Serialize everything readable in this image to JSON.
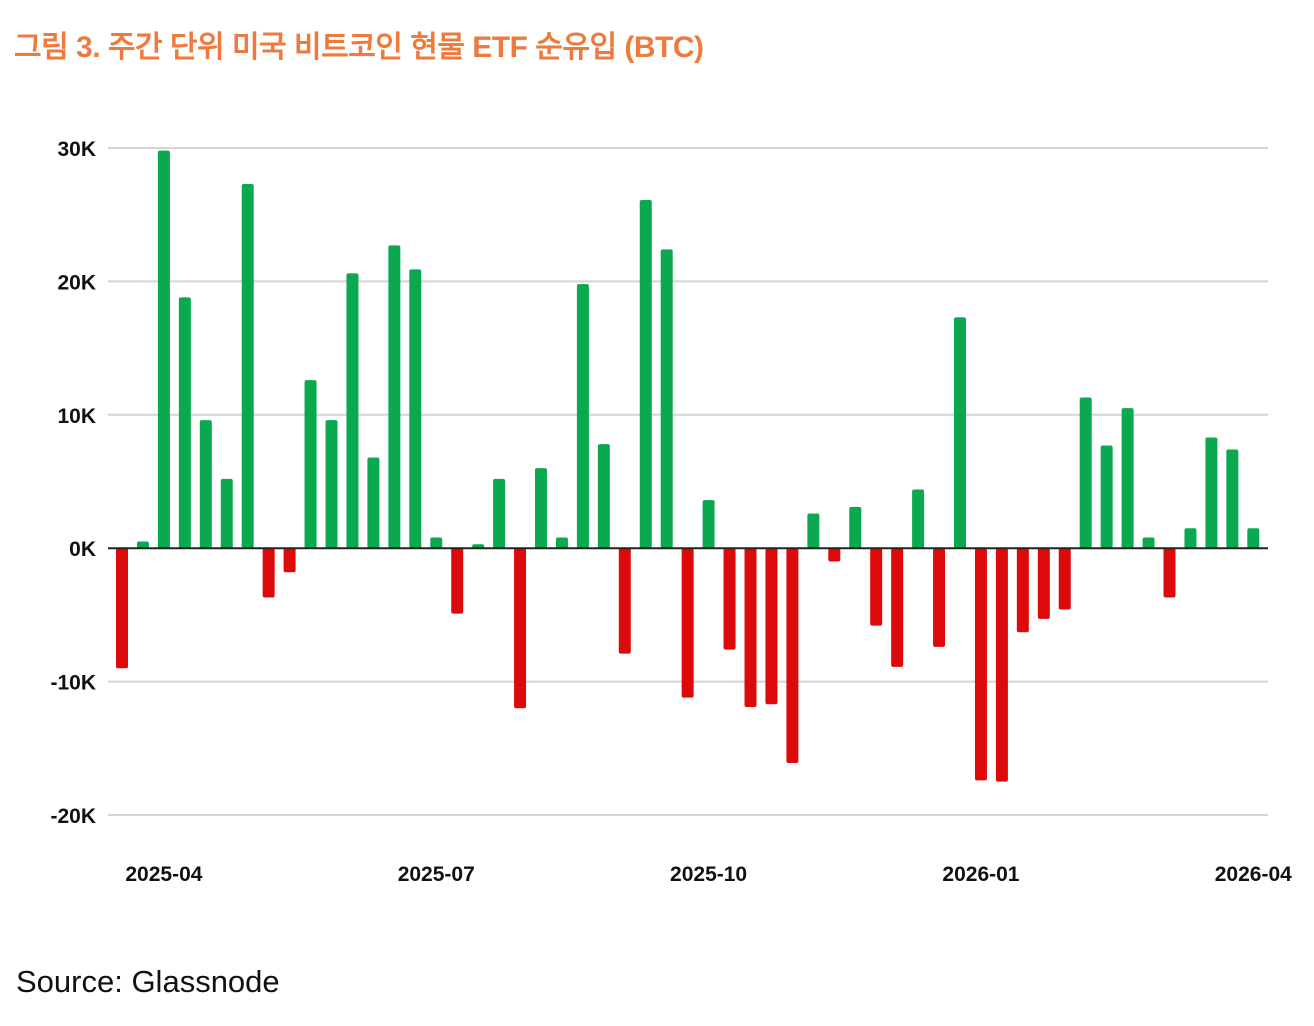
{
  "title": "그림 3. 주간 단위 미국 비트코인 현물 ETF 순유입 (BTC)",
  "source": "Source: Glassnode",
  "colors": {
    "title": "#ee7a3d",
    "positive": "#0aa84f",
    "negative": "#dc0a0a",
    "grid": "#d4d4d4",
    "axis": "#222222"
  },
  "chart_data": {
    "type": "bar",
    "title": "그림 3. 주간 단위 미국 비트코인 현물 ETF 순유입 (BTC)",
    "xlabel": "",
    "ylabel": "",
    "ylim": [
      -20000,
      30000
    ],
    "grid": true,
    "legend": "none",
    "y_ticks": [
      {
        "value": 30000,
        "label": "30K"
      },
      {
        "value": 20000,
        "label": "20K"
      },
      {
        "value": 10000,
        "label": "10K"
      },
      {
        "value": 0,
        "label": "0K"
      },
      {
        "value": -10000,
        "label": "-10K"
      },
      {
        "value": -20000,
        "label": "-20K"
      }
    ],
    "x_ticks": [
      {
        "week_index": 2,
        "label": "2025-04"
      },
      {
        "week_index": 15,
        "label": "2025-07"
      },
      {
        "week_index": 28,
        "label": "2025-10"
      },
      {
        "week_index": 41,
        "label": "2026-01"
      },
      {
        "week_index": 54,
        "label": "2026-04"
      }
    ],
    "series": [
      {
        "name": "Weekly net flow (BTC)",
        "values": [
          -9000,
          500,
          29800,
          18800,
          9600,
          5200,
          27300,
          -3700,
          -1800,
          12600,
          9600,
          20600,
          6800,
          22700,
          20900,
          800,
          -4900,
          300,
          5200,
          -12000,
          6000,
          800,
          19800,
          7800,
          -7900,
          26100,
          22400,
          -11200,
          3600,
          -7600,
          -11900,
          -11700,
          -16100,
          2600,
          -1000,
          3100,
          -5800,
          -8900,
          4400,
          -7400,
          17300,
          -17400,
          -17500,
          -6300,
          -5300,
          -4600,
          11300,
          7700,
          10500,
          800,
          -3700,
          1500,
          8300,
          7400,
          1500
        ]
      }
    ]
  }
}
